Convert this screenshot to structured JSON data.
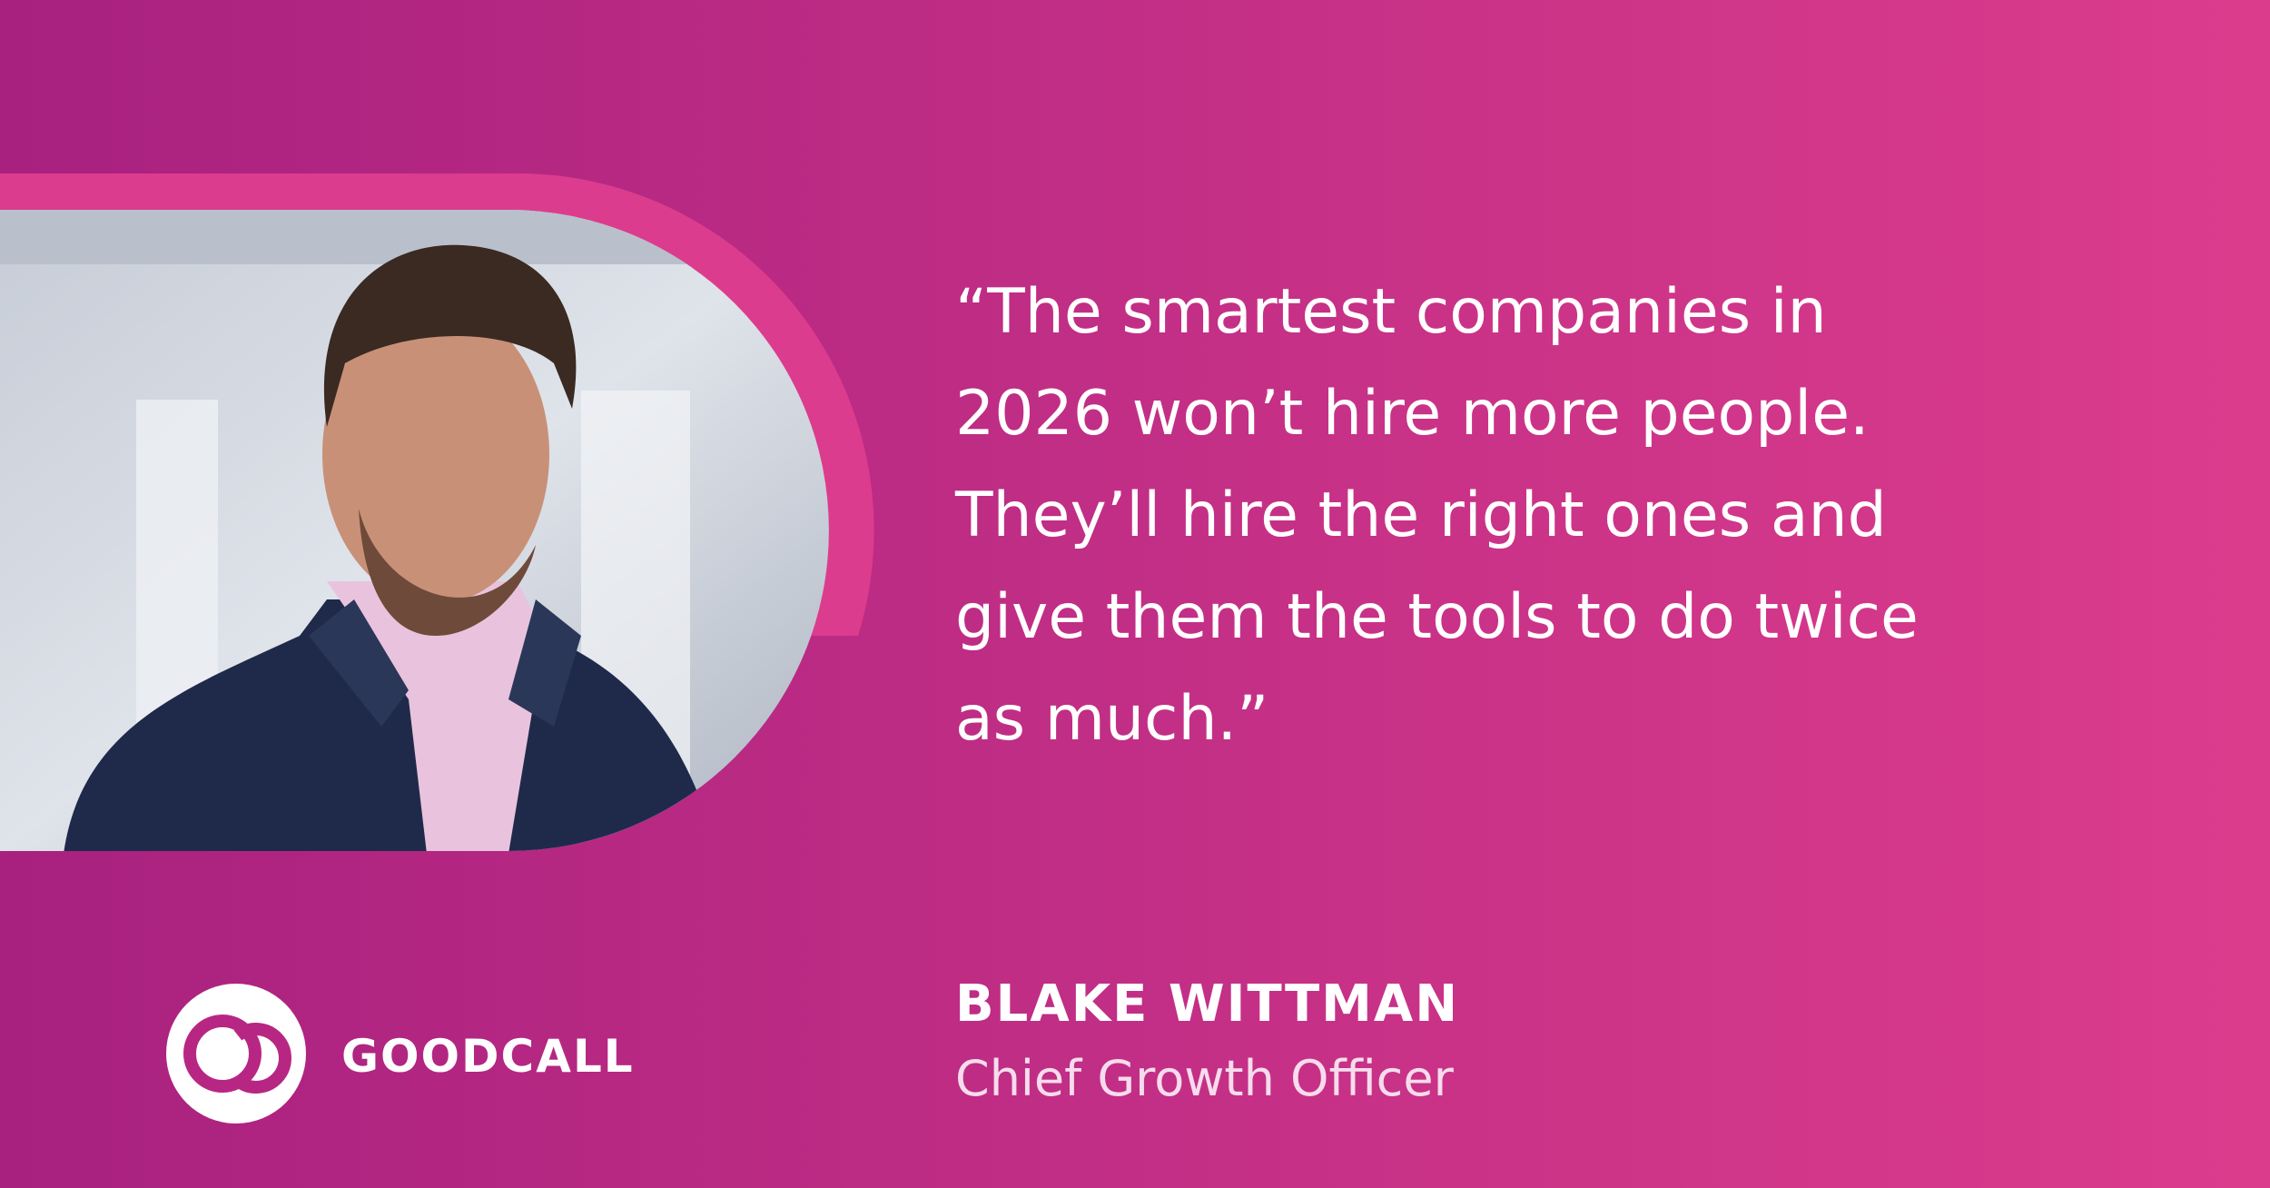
{
  "quote": {
    "lines": [
      "“The smartest companies in",
      "2026 won’t hire more people.",
      "They’ll hire the right ones and",
      "give them the tools to do twice",
      "as much.”"
    ]
  },
  "person": {
    "name": "BLAKE WITTMAN",
    "title": "Chief Growth Officer"
  },
  "brand": {
    "name": "GOODCALL"
  }
}
